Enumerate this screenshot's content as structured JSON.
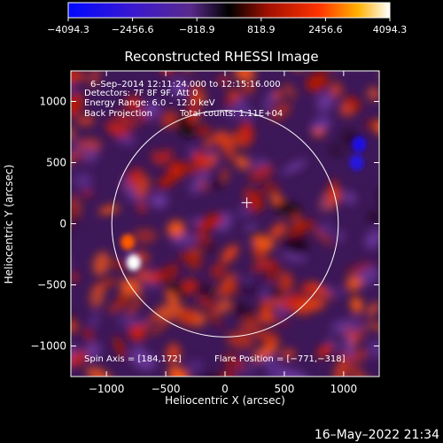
{
  "chart_data": {
    "type": "heatmap",
    "title": "Reconstructed RHESSI Image",
    "xlabel": "Heliocentric X (arcsec)",
    "ylabel": "Heliocentric Y (arcsec)",
    "xlim": [
      -1300,
      1300
    ],
    "ylim": [
      -1250,
      1250
    ],
    "xticks": [
      -1000,
      -500,
      0,
      500,
      1000
    ],
    "xtick_labels": [
      "−1000",
      "−500",
      "0",
      "500",
      "1000"
    ],
    "yticks": [
      -1000,
      -500,
      0,
      500,
      1000
    ],
    "ytick_labels": [
      "−1000",
      "−500",
      "0",
      "500",
      "1000"
    ],
    "colorbar": {
      "min": -4094.3,
      "max": 4094.3,
      "ticks": [
        -4094.3,
        -2456.6,
        -818.9,
        818.9,
        2456.6,
        4094.3
      ],
      "tick_labels": [
        "−4094.3",
        "−2456.6",
        "−818.9",
        "818.9",
        "2456.6",
        "4094.3"
      ]
    },
    "annotations": {
      "time_range": "6–Sep–2014 12:11:24.000 to 12:15:16.000",
      "detectors": "Detectors: 7F 8F 9F, Att 0",
      "energy_range": "Energy Range: 6.0 – 12.0 keV",
      "method": "Back Projection",
      "total_counts": "Total counts: 1.11E+04",
      "spin_axis": "Spin Axis = [184,172]",
      "flare_position": "Flare Position = [−771,−318]"
    },
    "solar_disk": {
      "center": [
        0,
        0
      ],
      "radius_arcsec": 955
    },
    "spin_axis_marker": [
      184,
      172
    ],
    "sources": [
      {
        "x": -771,
        "y": -318,
        "intensity": 4094.3
      },
      {
        "x": -820,
        "y": -150,
        "intensity": 2600
      },
      {
        "x": 1130,
        "y": 650,
        "intensity": -3300
      },
      {
        "x": 1110,
        "y": 500,
        "intensity": -3000
      }
    ]
  },
  "footer": {
    "timestamp": "16–May–2022 21:34"
  }
}
